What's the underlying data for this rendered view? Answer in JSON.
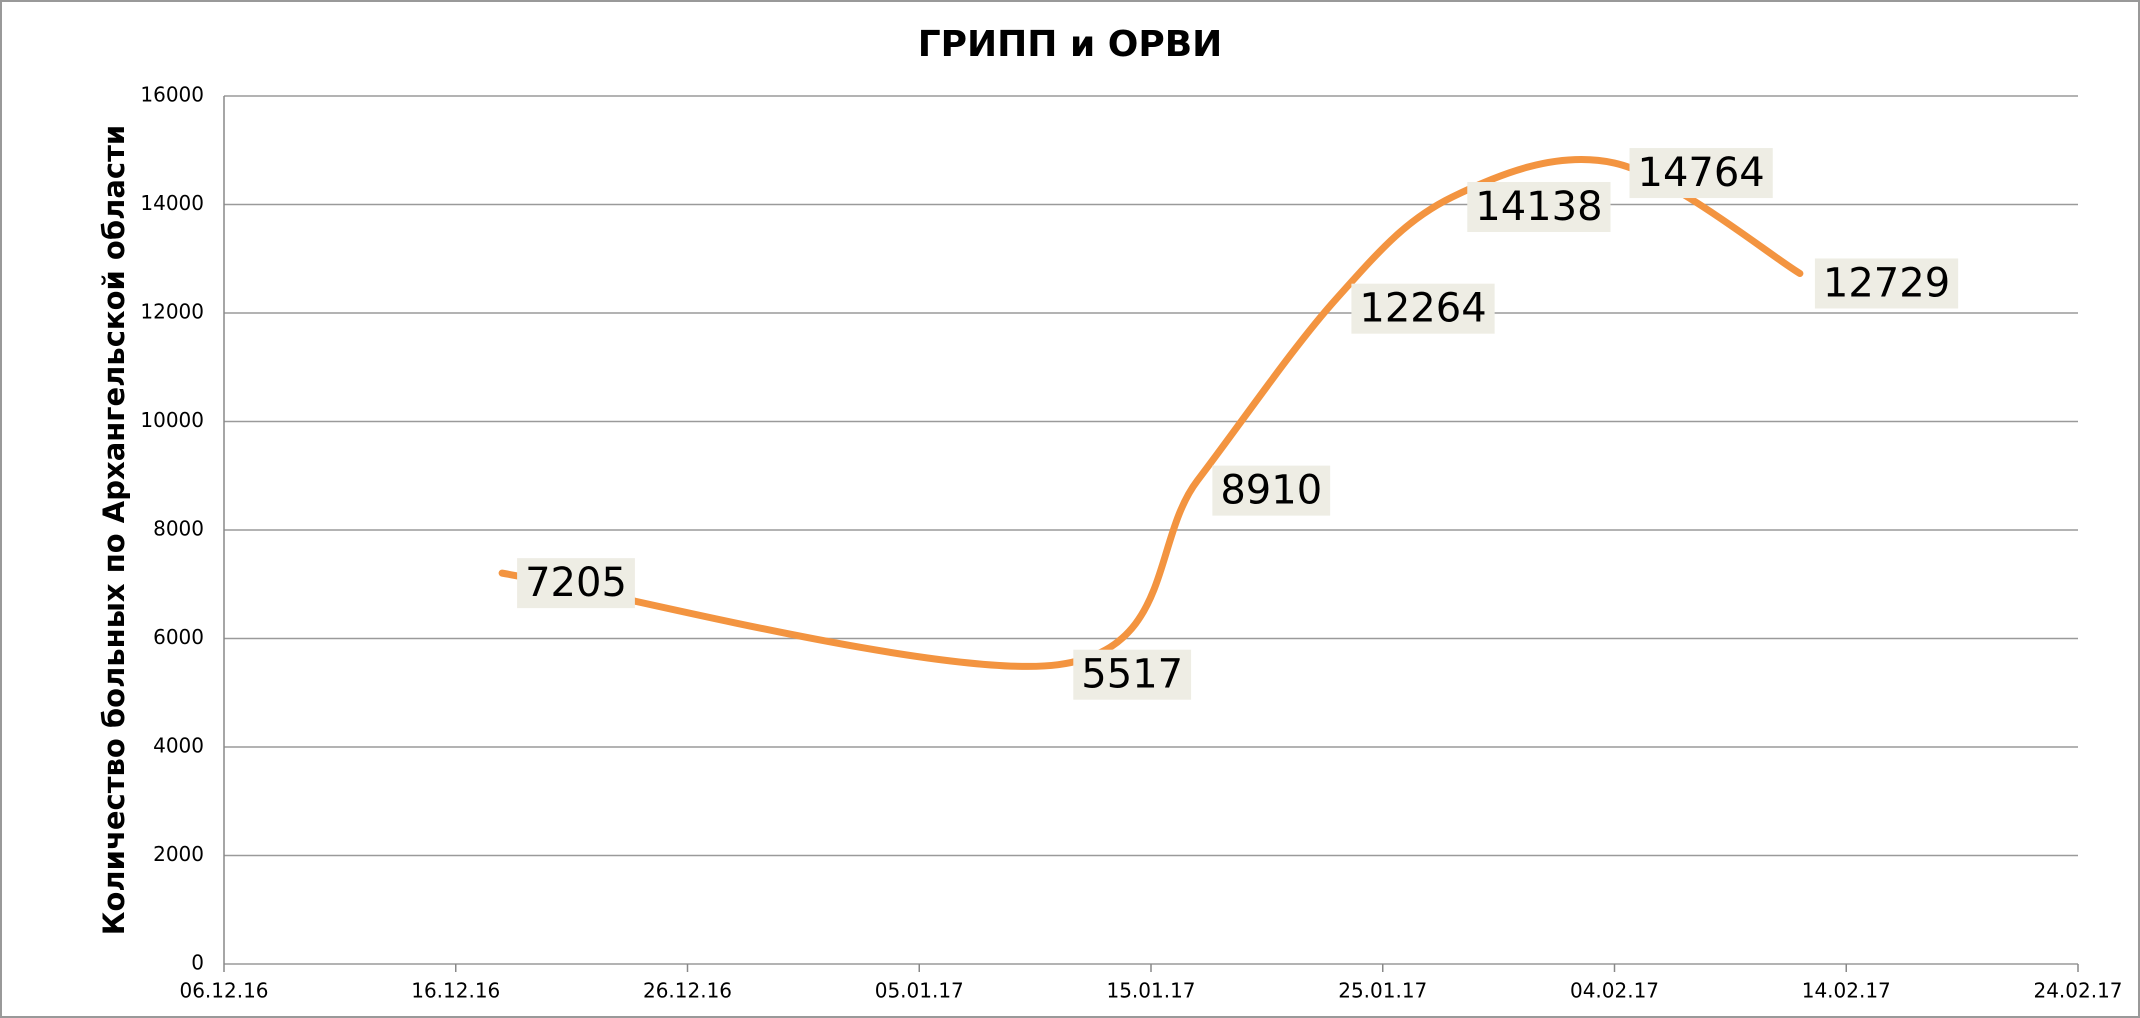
{
  "chart_data": {
    "type": "line",
    "title": "ГРИПП и ОРВИ",
    "y_label": "Количество больных по Архангельской области",
    "x": [
      "18.12.16",
      "11.01.17",
      "17.01.17",
      "23.01.17",
      "28.01.17",
      "04.02.17",
      "12.02.17"
    ],
    "series": [
      {
        "color": "#f39440",
        "values": [
          7205,
          5517,
          8910,
          12264,
          14138,
          14764,
          12729
        ]
      }
    ],
    "xlim": [
      "06.12.16",
      "24.02.17"
    ],
    "xticks": [
      "06.12.16",
      "16.12.16",
      "26.12.16",
      "05.01.17",
      "15.01.17",
      "25.01.17",
      "04.02.17",
      "14.02.17",
      "24.02.17"
    ],
    "ylim": [
      0,
      16000
    ],
    "yticks": [
      0,
      2000,
      4000,
      6000,
      8000,
      10000,
      12000,
      14000,
      16000
    ],
    "grid": true,
    "smooth": true
  }
}
